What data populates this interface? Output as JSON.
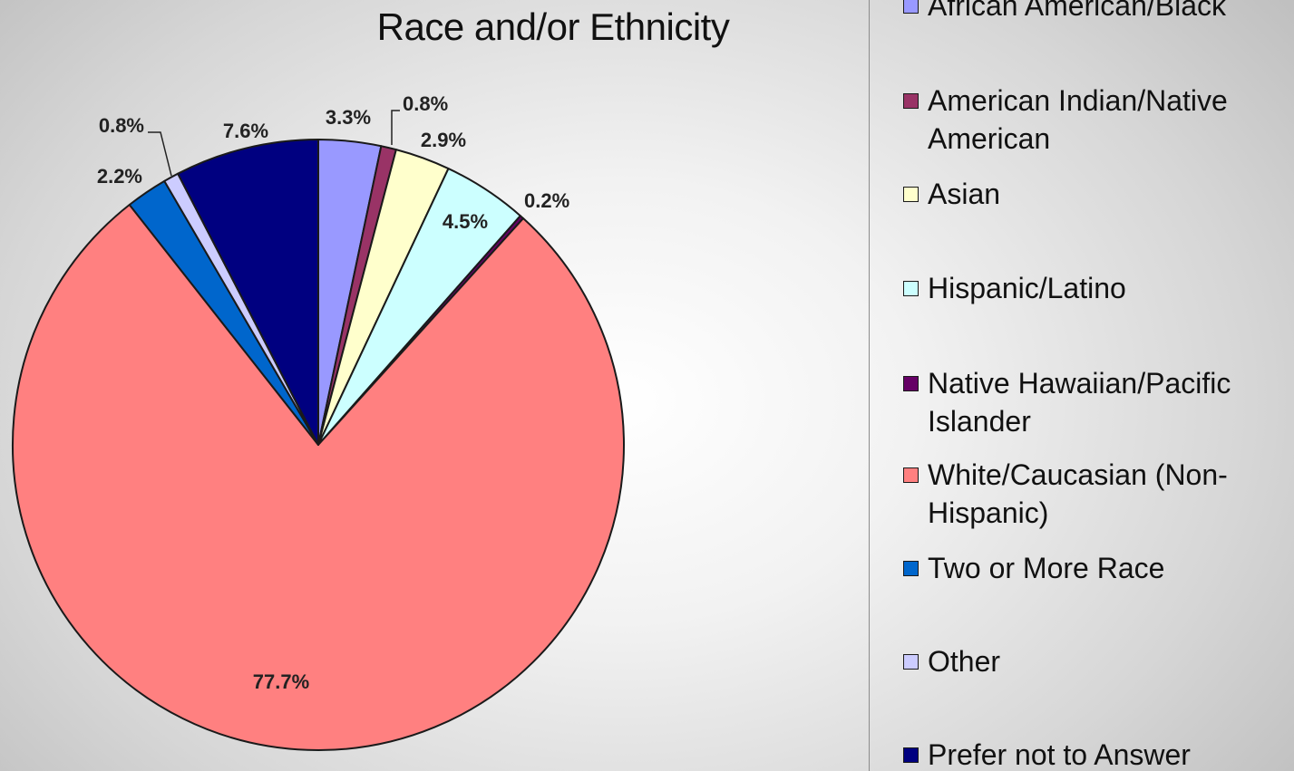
{
  "chart_data": {
    "type": "pie",
    "title": "Race and/or Ethnicity",
    "slices": [
      {
        "label": "African American/Black",
        "value": 3.3,
        "display": "3.3%",
        "color": "#9999ff"
      },
      {
        "label": "American Indian/Native American",
        "value": 0.8,
        "display": "0.8%",
        "color": "#993366"
      },
      {
        "label": "Asian",
        "value": 2.9,
        "display": "2.9%",
        "color": "#ffffcc"
      },
      {
        "label": "Hispanic/Latino",
        "value": 4.5,
        "display": "4.5%",
        "color": "#ccffff"
      },
      {
        "label": "Native Hawaiian/Pacific Islander",
        "value": 0.2,
        "display": "0.2%",
        "color": "#660066"
      },
      {
        "label": "White/Caucasian (Non-Hispanic)",
        "value": 77.7,
        "display": "77.7%",
        "color": "#ff8080"
      },
      {
        "label": "Two or More Race",
        "value": 2.2,
        "display": "2.2%",
        "color": "#0066cc"
      },
      {
        "label": "Other",
        "value": 0.8,
        "display": "0.8%",
        "color": "#ccccff"
      },
      {
        "label": "Prefer not to Answer",
        "value": 7.6,
        "display": "7.6%",
        "color": "#000080"
      }
    ],
    "legend_position": "right"
  }
}
